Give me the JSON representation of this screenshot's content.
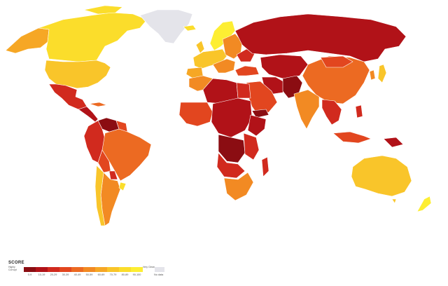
{
  "legend": {
    "title": "SCORE",
    "low_label": "Highly Corrupt",
    "high_label": "Very Clean",
    "no_data_label": "No data",
    "ranges": [
      "0-9",
      "10-19",
      "20-29",
      "30-39",
      "40-49",
      "50-59",
      "60-69",
      "70-79",
      "80-89",
      "90-100"
    ],
    "colors": [
      "#8b0d12",
      "#b11218",
      "#d12a1e",
      "#e2461f",
      "#ec6a22",
      "#f28a23",
      "#f6a725",
      "#f9c52a",
      "#fbdd2b",
      "#fdee33"
    ],
    "no_data_color": "#e4e4ea"
  },
  "map_colors": {
    "ocean": "#ffffff",
    "border": "#ffffff"
  }
}
